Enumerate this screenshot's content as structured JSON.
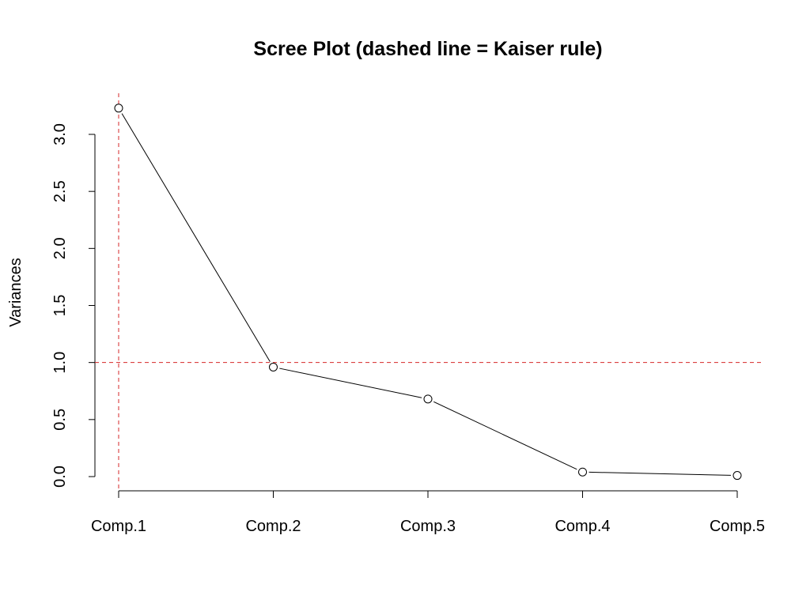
{
  "chart_data": {
    "type": "line",
    "title": "Scree Plot (dashed line = Kaiser rule)",
    "xlabel": "",
    "ylabel": "Variances",
    "categories": [
      "Comp.1",
      "Comp.2",
      "Comp.3",
      "Comp.4",
      "Comp.5"
    ],
    "values": [
      3.23,
      0.96,
      0.68,
      0.04,
      0.01
    ],
    "ylim": [
      0.0,
      3.0
    ],
    "yticks": [
      "0.0",
      "0.5",
      "1.0",
      "1.5",
      "2.0",
      "2.5",
      "3.0"
    ],
    "reference_lines": {
      "horizontal_y": 1.0,
      "vertical_category": "Comp.1",
      "color": "#d62728",
      "style": "dashed"
    },
    "grid": false,
    "legend": "none",
    "colors": {
      "series": "#000000",
      "reference": "#d62728"
    }
  }
}
